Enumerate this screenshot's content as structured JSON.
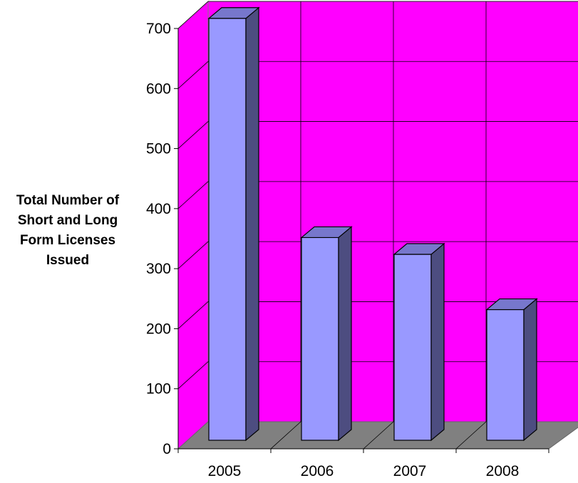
{
  "chart_data": {
    "type": "bar",
    "title": "",
    "xlabel": "",
    "ylabel_lines": [
      "Total Number of",
      "Short and Long",
      "Form Licenses",
      "Issued"
    ],
    "categories": [
      "2005",
      "2006",
      "2007",
      "2008"
    ],
    "values": [
      705,
      340,
      312,
      220
    ],
    "ylim": [
      0,
      700
    ],
    "yticks": [
      "0",
      "100",
      "200",
      "300",
      "400",
      "500",
      "600",
      "700"
    ],
    "grid": true,
    "legend": "none",
    "three_d": true,
    "colors": {
      "wall": "#FF00FF",
      "floor": "#808080",
      "bar_front": "#9999FF",
      "bar_top": "#7777CC",
      "bar_side": "#4D4D80",
      "gridline": "#000000"
    }
  }
}
